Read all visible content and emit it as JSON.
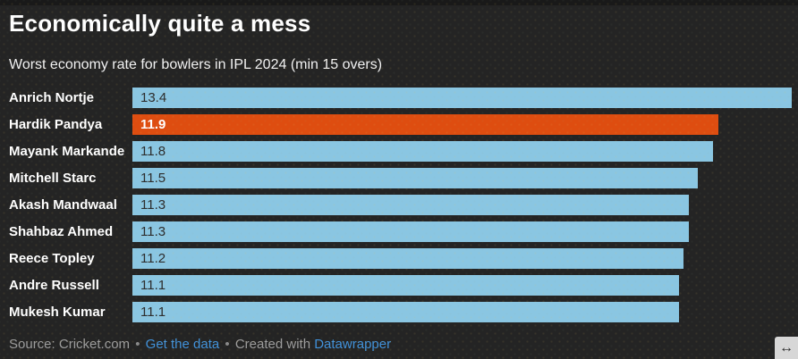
{
  "header": {
    "title": "Economically quite a mess",
    "subtitle": "Worst economy rate for bowlers in IPL 2024 (min 15 overs)"
  },
  "chart_data": {
    "type": "bar",
    "orientation": "horizontal",
    "title": "Economically quite a mess",
    "subtitle": "Worst economy rate for bowlers in IPL 2024 (min 15 overs)",
    "xlabel": "",
    "ylabel": "",
    "xlim": [
      0,
      13.4
    ],
    "grid": false,
    "legend": false,
    "categories": [
      "Anrich Nortje",
      "Hardik Pandya",
      "Mayank Markande",
      "Mitchell Starc",
      "Akash Mandwaal",
      "Shahbaz Ahmed",
      "Reece Topley",
      "Andre Russell",
      "Mukesh Kumar"
    ],
    "values": [
      13.4,
      11.9,
      11.8,
      11.5,
      11.3,
      11.3,
      11.2,
      11.1,
      11.1
    ],
    "value_labels": [
      "13.4",
      "11.9",
      "11.8",
      "11.5",
      "11.3",
      "11.3",
      "11.2",
      "11.1",
      "11.1"
    ],
    "highlight_index": 1,
    "bar_color": "#8ac6e2",
    "highlight_color": "#de4d10"
  },
  "footer": {
    "source_prefix": "Source: Cricket.com",
    "separator": "•",
    "get_data_link": "Get the data",
    "created_with": "Created with",
    "datawrapper_link": "Datawrapper"
  },
  "controls": {
    "resize_handle_icon": "↔"
  },
  "colors": {
    "background": "#242424",
    "top_edge": "#191919",
    "bar": "#8ac6e2",
    "highlight_bar": "#de4d10",
    "value_text": "#2d2d2d",
    "highlight_value_text": "#ffffff",
    "link": "#4191d9",
    "source_text": "#9c9c9c"
  }
}
